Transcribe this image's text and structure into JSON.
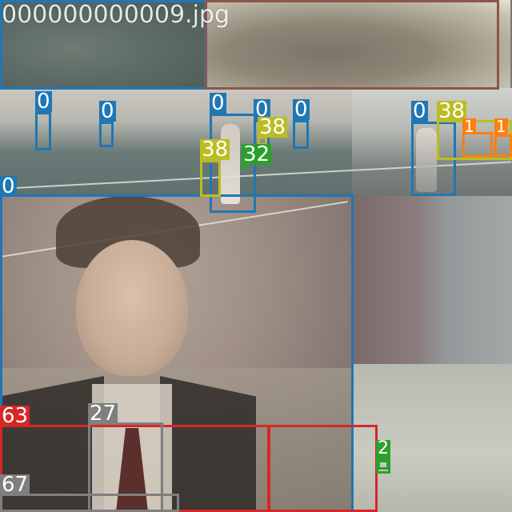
{
  "image": {
    "filename": "000000000009.jpg"
  },
  "colors": {
    "person": "#1f77b4",
    "tennis_racket": "#bcbd22",
    "sports_ball": "#2ca02c",
    "tie": "#d62728",
    "car": "#7f7f7f",
    "orange_box": "#ff7f0e",
    "brown_box": "#8c564b"
  },
  "detections": [
    {
      "id": "person-tl",
      "label": "",
      "color_key": "person"
    },
    {
      "id": "brown-top",
      "label": "",
      "color_key": "brown_box"
    },
    {
      "id": "person-1",
      "label": "0",
      "color_key": "person"
    },
    {
      "id": "person-2",
      "label": "0",
      "color_key": "person"
    },
    {
      "id": "person-3",
      "label": "0",
      "color_key": "person"
    },
    {
      "id": "person-4",
      "label": "0",
      "color_key": "person"
    },
    {
      "id": "person-5",
      "label": "0",
      "color_key": "person"
    },
    {
      "id": "person-6",
      "label": "0",
      "color_key": "person"
    },
    {
      "id": "person-big",
      "label": "0",
      "color_key": "person"
    },
    {
      "id": "racket-1",
      "label": "38",
      "color_key": "tennis_racket"
    },
    {
      "id": "racket-2",
      "label": "38",
      "color_key": "tennis_racket"
    },
    {
      "id": "racket-3",
      "label": "38",
      "color_key": "tennis_racket"
    },
    {
      "id": "ball-1",
      "label": "32",
      "color_key": "sports_ball"
    },
    {
      "id": "ball-2",
      "label": "32",
      "color_key": "sports_ball"
    },
    {
      "id": "orange-1",
      "label": "1",
      "color_key": "orange_box"
    },
    {
      "id": "orange-2",
      "label": "1",
      "color_key": "orange_box"
    },
    {
      "id": "tie-63",
      "label": "63",
      "color_key": "tie"
    },
    {
      "id": "red-2",
      "label": "",
      "color_key": "tie"
    },
    {
      "id": "gray-27",
      "label": "27",
      "color_key": "car"
    },
    {
      "id": "gray-67",
      "label": "67",
      "color_key": "car"
    },
    {
      "id": "green-2",
      "label": "2",
      "color_key": "sports_ball"
    }
  ]
}
